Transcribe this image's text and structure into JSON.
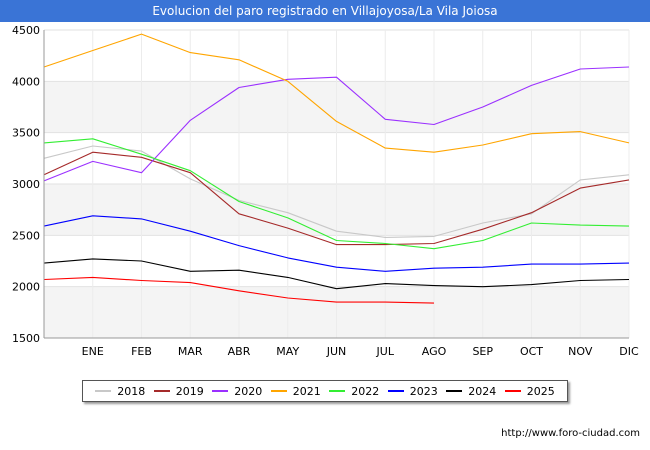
{
  "header": {
    "title": "Evolucion del paro registrado en Villajoyosa/La Vila Joiosa"
  },
  "footer": {
    "source": "http://www.foro-ciudad.com"
  },
  "chart_data": {
    "type": "line",
    "title": "Evolucion del paro registrado en Villajoyosa/La Vila Joiosa",
    "categories": [
      "DIC_prev",
      "ENE",
      "FEB",
      "MAR",
      "ABR",
      "MAY",
      "JUN",
      "JUL",
      "AGO",
      "SEP",
      "OCT",
      "NOV",
      "DIC"
    ],
    "x_tick_labels": [
      "ENE",
      "FEB",
      "MAR",
      "ABR",
      "MAY",
      "JUN",
      "JUL",
      "AGO",
      "SEP",
      "OCT",
      "NOV",
      "DIC"
    ],
    "y_ticks": [
      1500,
      2000,
      2500,
      3000,
      3500,
      4000,
      4500
    ],
    "ylim": [
      1500,
      4500
    ],
    "grid": true,
    "legend_position": "bottom",
    "series": [
      {
        "name": "2018",
        "color": "#c8c8c8",
        "values": [
          3250,
          3370,
          3320,
          3050,
          2840,
          2720,
          2540,
          2480,
          2490,
          2620,
          2710,
          3040,
          3090
        ]
      },
      {
        "name": "2019",
        "color": "#a52a2a",
        "values": [
          3090,
          3310,
          3260,
          3110,
          2710,
          2570,
          2410,
          2410,
          2420,
          2560,
          2720,
          2960,
          3040
        ]
      },
      {
        "name": "2020",
        "color": "#9b30ff",
        "values": [
          3030,
          3220,
          3110,
          3620,
          3940,
          4020,
          4040,
          3630,
          3580,
          3750,
          3960,
          4120,
          4140
        ]
      },
      {
        "name": "2021",
        "color": "#ffa500",
        "values": [
          4140,
          4300,
          4460,
          4280,
          4210,
          4000,
          3610,
          3350,
          3310,
          3380,
          3490,
          3510,
          3400
        ]
      },
      {
        "name": "2022",
        "color": "#33ee33",
        "values": [
          3400,
          3440,
          3290,
          3130,
          2830,
          2670,
          2450,
          2420,
          2370,
          2450,
          2620,
          2600,
          2590
        ]
      },
      {
        "name": "2023",
        "color": "#0000ff",
        "values": [
          2590,
          2690,
          2660,
          2540,
          2400,
          2280,
          2190,
          2150,
          2180,
          2190,
          2220,
          2220,
          2230
        ]
      },
      {
        "name": "2024",
        "color": "#000000",
        "values": [
          2230,
          2270,
          2250,
          2150,
          2160,
          2090,
          1980,
          2030,
          2010,
          2000,
          2020,
          2060,
          2070
        ]
      },
      {
        "name": "2025",
        "color": "#ff0000",
        "values": [
          2070,
          2090,
          2060,
          2040,
          1960,
          1890,
          1850,
          1850,
          1840,
          null,
          null,
          null,
          null
        ]
      }
    ]
  }
}
